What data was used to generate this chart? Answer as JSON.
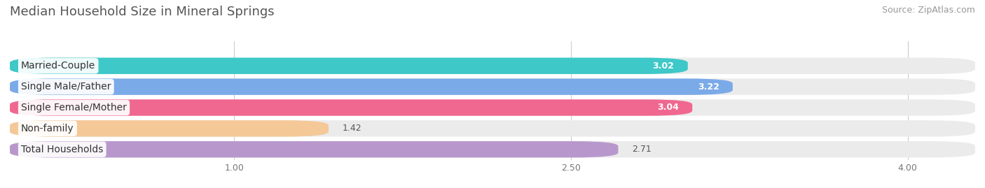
{
  "title": "Median Household Size in Mineral Springs",
  "source": "Source: ZipAtlas.com",
  "categories": [
    "Married-Couple",
    "Single Male/Father",
    "Single Female/Mother",
    "Non-family",
    "Total Households"
  ],
  "values": [
    3.02,
    3.22,
    3.04,
    1.42,
    2.71
  ],
  "bar_colors": [
    "#3ec8c8",
    "#7baae8",
    "#f06890",
    "#f5c898",
    "#b898cc"
  ],
  "value_colors": [
    "white",
    "white",
    "white",
    "#555555",
    "#555555"
  ],
  "background_color": "#ffffff",
  "bar_bg_color": "#ebebeb",
  "xmin": 0.0,
  "xmax": 4.3,
  "xlim_display": [
    0.0,
    4.3
  ],
  "xticks": [
    1.0,
    2.5,
    4.0
  ],
  "title_fontsize": 13,
  "label_fontsize": 10,
  "value_fontsize": 9,
  "source_fontsize": 9,
  "bar_height": 0.65,
  "bar_gap": 0.18
}
